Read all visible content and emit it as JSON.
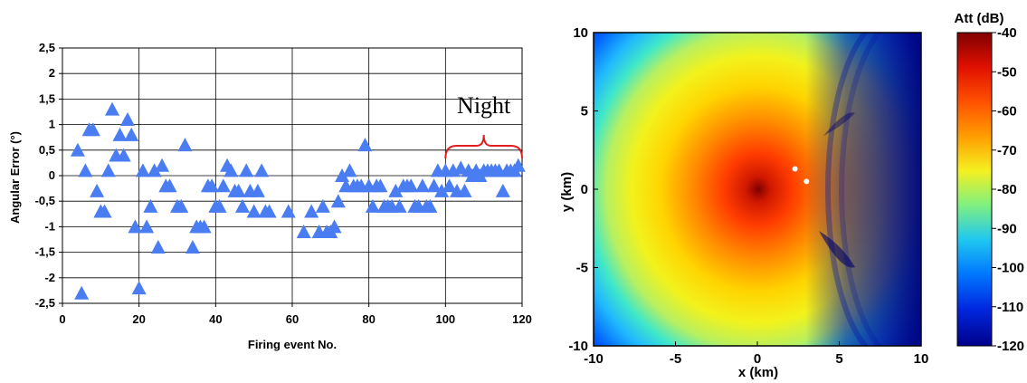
{
  "chart_data": [
    {
      "type": "scatter",
      "xlabel": "Firing event No.",
      "ylabel": "Angular Error (°)",
      "xlim": [
        0,
        120
      ],
      "ylim": [
        -2.5,
        2.5
      ],
      "xticks": [
        "0",
        "20",
        "40",
        "60",
        "80",
        "100",
        "120"
      ],
      "yticks": [
        "2,5",
        "2",
        "1,5",
        "1",
        "0,5",
        "0",
        "-0,5",
        "-1",
        "-1,5",
        "-2",
        "-2,5"
      ],
      "grid": true,
      "marker": "triangle",
      "marker_color": "#4a7df2",
      "annotation": "Night",
      "annotation_range": [
        100,
        120
      ],
      "annotation_color": "#e02020",
      "points": [
        [
          4,
          0.5
        ],
        [
          5,
          -2.3
        ],
        [
          6,
          0.1
        ],
        [
          7,
          0.9
        ],
        [
          8,
          0.9
        ],
        [
          9,
          -0.3
        ],
        [
          10,
          -0.7
        ],
        [
          11,
          -0.7
        ],
        [
          12,
          0.1
        ],
        [
          13,
          1.3
        ],
        [
          14,
          0.4
        ],
        [
          15,
          0.8
        ],
        [
          16,
          0.4
        ],
        [
          17,
          1.1
        ],
        [
          18,
          0.8
        ],
        [
          19,
          -1.0
        ],
        [
          20,
          -2.2
        ],
        [
          21,
          0.1
        ],
        [
          22,
          -1.0
        ],
        [
          23,
          -0.6
        ],
        [
          24,
          0.1
        ],
        [
          25,
          -1.4
        ],
        [
          26,
          0.2
        ],
        [
          27,
          -0.2
        ],
        [
          28,
          -0.2
        ],
        [
          30,
          -0.6
        ],
        [
          31,
          -0.6
        ],
        [
          32,
          0.6
        ],
        [
          34,
          -1.4
        ],
        [
          35,
          -1.0
        ],
        [
          36,
          -1.0
        ],
        [
          37,
          -1.0
        ],
        [
          38,
          -0.2
        ],
        [
          39,
          -0.2
        ],
        [
          40,
          -0.6
        ],
        [
          41,
          -0.6
        ],
        [
          42,
          -0.2
        ],
        [
          43,
          0.2
        ],
        [
          44,
          0.1
        ],
        [
          45,
          -0.3
        ],
        [
          46,
          -0.3
        ],
        [
          47,
          -0.6
        ],
        [
          48,
          0.1
        ],
        [
          49,
          -0.3
        ],
        [
          50,
          -0.7
        ],
        [
          51,
          -0.3
        ],
        [
          52,
          0.1
        ],
        [
          53,
          -0.7
        ],
        [
          54,
          -0.7
        ],
        [
          59,
          -0.7
        ],
        [
          63,
          -1.1
        ],
        [
          65,
          -0.7
        ],
        [
          67,
          -1.1
        ],
        [
          68,
          -0.6
        ],
        [
          69,
          -1.1
        ],
        [
          70,
          -1.1
        ],
        [
          71,
          -1.0
        ],
        [
          72,
          -0.5
        ],
        [
          73,
          0.0
        ],
        [
          74,
          -0.2
        ],
        [
          75,
          0.1
        ],
        [
          76,
          -0.2
        ],
        [
          77,
          -0.2
        ],
        [
          78,
          -0.2
        ],
        [
          79,
          0.6
        ],
        [
          80,
          -0.2
        ],
        [
          81,
          -0.6
        ],
        [
          82,
          -0.2
        ],
        [
          83,
          -0.2
        ],
        [
          84,
          -0.6
        ],
        [
          85,
          -0.6
        ],
        [
          86,
          -0.6
        ],
        [
          87,
          -0.3
        ],
        [
          88,
          -0.6
        ],
        [
          89,
          -0.2
        ],
        [
          90,
          -0.2
        ],
        [
          91,
          -0.2
        ],
        [
          92,
          -0.6
        ],
        [
          93,
          -0.6
        ],
        [
          94,
          -0.2
        ],
        [
          95,
          -0.6
        ],
        [
          96,
          -0.6
        ],
        [
          97,
          -0.2
        ],
        [
          98,
          0.1
        ],
        [
          99,
          -0.3
        ],
        [
          100,
          0.1
        ],
        [
          101,
          -0.2
        ],
        [
          102,
          0.1
        ],
        [
          103,
          -0.3
        ],
        [
          104,
          0.15
        ],
        [
          105,
          -0.3
        ],
        [
          106,
          0.1
        ],
        [
          107,
          0.0
        ],
        [
          108,
          0.1
        ],
        [
          109,
          0.0
        ],
        [
          110,
          0.1
        ],
        [
          111,
          0.1
        ],
        [
          112,
          0.1
        ],
        [
          113,
          0.1
        ],
        [
          114,
          0.1
        ],
        [
          115,
          -0.3
        ],
        [
          116,
          0.1
        ],
        [
          117,
          0.1
        ],
        [
          118,
          0.1
        ],
        [
          119,
          0.2
        ]
      ]
    },
    {
      "type": "heatmap",
      "xlabel": "x (km)",
      "ylabel": "y (km)",
      "xlim": [
        -10,
        10
      ],
      "ylim": [
        -10,
        10
      ],
      "xticks": [
        "-10",
        "-5",
        "0",
        "5",
        "10"
      ],
      "yticks": [
        "10",
        "5",
        "0",
        "-5",
        "-10"
      ],
      "colorbar_title": "Att (dB)",
      "colorbar_ticks": [
        "-40",
        "-50",
        "-60",
        "-70",
        "-80",
        "-90",
        "-100",
        "-110",
        "-120"
      ],
      "clim": [
        -120,
        -40
      ],
      "source": [
        0,
        0
      ],
      "markers": [
        [
          2.3,
          1.3
        ],
        [
          3.0,
          0.5
        ]
      ]
    }
  ]
}
